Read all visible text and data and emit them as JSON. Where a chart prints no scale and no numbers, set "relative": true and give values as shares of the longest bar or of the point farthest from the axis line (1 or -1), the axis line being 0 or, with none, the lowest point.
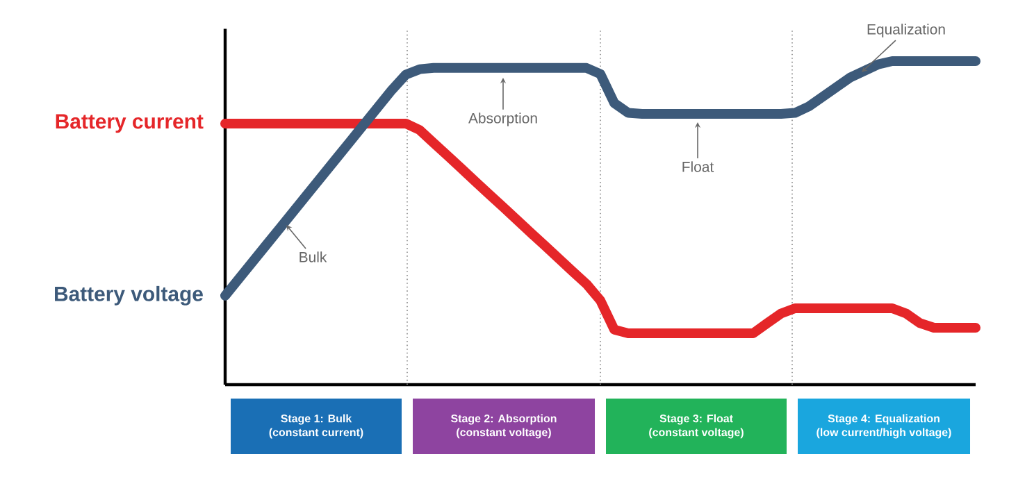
{
  "chart_data": {
    "type": "line",
    "relative": true,
    "line_style": "solid",
    "categories": [
      null,
      null,
      null,
      null,
      null,
      null,
      null,
      null,
      null,
      null,
      null,
      null,
      null,
      null,
      null,
      null,
      null,
      null,
      null,
      null,
      null,
      null,
      null,
      null,
      null,
      null,
      null,
      null,
      null,
      null,
      null,
      null,
      null,
      null,
      null,
      null,
      null,
      null,
      null,
      null,
      null,
      null,
      null,
      null,
      null,
      null,
      null,
      null,
      null,
      null,
      null,
      null,
      null,
      null,
      null
    ],
    "series": [
      {
        "name": "Battery current",
        "color": "#e52629",
        "values": [
          0.807,
          0.807,
          0.807,
          0.807,
          0.807,
          0.807,
          0.807,
          0.807,
          0.807,
          0.807,
          0.807,
          0.807,
          0.807,
          0.807,
          0.787,
          0.747,
          0.708,
          0.668,
          0.628,
          0.588,
          0.549,
          0.509,
          0.469,
          0.43,
          0.39,
          0.35,
          0.311,
          0.26,
          0.17,
          0.159,
          0.159,
          0.159,
          0.159,
          0.159,
          0.159,
          0.159,
          0.159,
          0.159,
          0.159,
          0.19,
          0.22,
          0.236,
          0.236,
          0.236,
          0.236,
          0.236,
          0.236,
          0.236,
          0.236,
          0.22,
          0.19,
          0.176,
          0.176,
          0.176,
          0.176
        ]
      },
      {
        "name": "Battery voltage",
        "color": "#3d5a7a",
        "values": [
          0.275,
          0.328,
          0.381,
          0.434,
          0.487,
          0.54,
          0.593,
          0.646,
          0.699,
          0.752,
          0.805,
          0.858,
          0.911,
          0.958,
          0.975,
          0.979,
          0.979,
          0.979,
          0.979,
          0.979,
          0.979,
          0.979,
          0.979,
          0.979,
          0.979,
          0.979,
          0.979,
          0.96,
          0.87,
          0.84,
          0.837,
          0.837,
          0.837,
          0.837,
          0.837,
          0.837,
          0.837,
          0.837,
          0.837,
          0.837,
          0.837,
          0.84,
          0.86,
          0.89,
          0.92,
          0.95,
          0.97,
          0.99,
          1.0,
          1.0,
          1.0,
          1.0,
          1.0,
          1.0,
          1.0
        ]
      }
    ],
    "grid": "x",
    "annotations": [
      "Bulk",
      "Absorption",
      "Float",
      "Equalization",
      "Stage 1: Bulk",
      "(constant current)",
      "Stage 2: Absorption",
      "(constant voltage)",
      "Stage 3: Float",
      "(constant voltage)",
      "Stage 4: Equalization",
      "(low current/high voltage)"
    ]
  }
}
